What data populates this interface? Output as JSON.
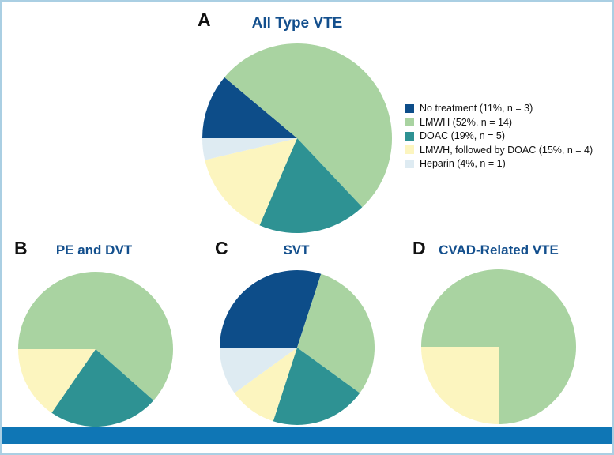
{
  "figure": {
    "background": "#ffffff",
    "border_color": "#aacfe3",
    "bottom_bar_color": "#0f76b5",
    "title_color": "#134f8d",
    "panel_label_color": "#111111",
    "colors": {
      "no_treatment": "#0d4d89",
      "lmwh": "#a9d3a1",
      "doac": "#2e9293",
      "lmwh_then_doac": "#fcf5bf",
      "heparin": "#deebf2"
    },
    "panels": [
      {
        "label": "A",
        "title": "All Type VTE"
      },
      {
        "label": "B",
        "title": "PE and DVT"
      },
      {
        "label": "C",
        "title": "SVT"
      },
      {
        "label": "D",
        "title": "CVAD-Related VTE"
      }
    ],
    "legend": {
      "items": [
        {
          "key": "no_treatment",
          "label": "No treatment (11%, n = 3)"
        },
        {
          "key": "lmwh",
          "label": "LMWH (52%, n = 14)"
        },
        {
          "key": "doac",
          "label": "DOAC (19%, n = 5)"
        },
        {
          "key": "lmwh_then_doac",
          "label": "LMWH, followed by DOAC (15%, n = 4)"
        },
        {
          "key": "heparin",
          "label": "Heparin (4%, n = 1)"
        }
      ]
    }
  },
  "chart_data": [
    {
      "type": "pie",
      "panel": "A",
      "title": "All Type VTE",
      "start_angle_deg": 180,
      "direction": "clockwise",
      "legend_position": "right",
      "slices": [
        {
          "label": "No treatment",
          "key": "no_treatment",
          "n": 3,
          "pct": 11
        },
        {
          "label": "LMWH",
          "key": "lmwh",
          "n": 14,
          "pct": 52
        },
        {
          "label": "DOAC",
          "key": "doac",
          "n": 5,
          "pct": 19
        },
        {
          "label": "LMWH, followed by DOAC",
          "key": "lmwh_then_doac",
          "n": 4,
          "pct": 15
        },
        {
          "label": "Heparin",
          "key": "heparin",
          "n": 1,
          "pct": 4
        }
      ]
    },
    {
      "type": "pie",
      "panel": "B",
      "title": "PE and DVT",
      "start_angle_deg": 180,
      "direction": "clockwise",
      "slices": [
        {
          "label": "LMWH",
          "key": "lmwh",
          "n": 8,
          "pct": 61.5
        },
        {
          "label": "DOAC",
          "key": "doac",
          "n": 3,
          "pct": 23.1
        },
        {
          "label": "LMWH, followed by DOAC",
          "key": "lmwh_then_doac",
          "n": 2,
          "pct": 15.4
        }
      ]
    },
    {
      "type": "pie",
      "panel": "C",
      "title": "SVT",
      "start_angle_deg": 180,
      "direction": "clockwise",
      "slices": [
        {
          "label": "No treatment",
          "key": "no_treatment",
          "n": 3,
          "pct": 30
        },
        {
          "label": "LMWH",
          "key": "lmwh",
          "n": 3,
          "pct": 30
        },
        {
          "label": "DOAC",
          "key": "doac",
          "n": 2,
          "pct": 20
        },
        {
          "label": "LMWH, followed by DOAC",
          "key": "lmwh_then_doac",
          "n": 1,
          "pct": 10
        },
        {
          "label": "Heparin",
          "key": "heparin",
          "n": 1,
          "pct": 10
        }
      ]
    },
    {
      "type": "pie",
      "panel": "D",
      "title": "CVAD-Related VTE",
      "start_angle_deg": 180,
      "direction": "clockwise",
      "slices": [
        {
          "label": "LMWH",
          "key": "lmwh",
          "n": 3,
          "pct": 75
        },
        {
          "label": "LMWH, followed by DOAC",
          "key": "lmwh_then_doac",
          "n": 1,
          "pct": 25
        }
      ]
    }
  ]
}
